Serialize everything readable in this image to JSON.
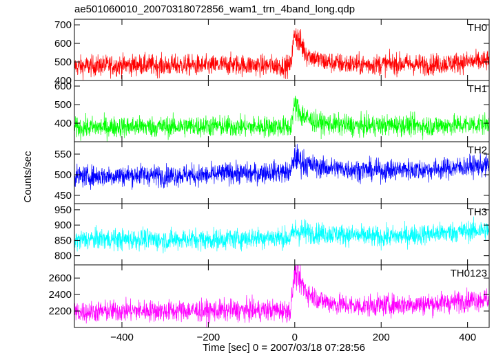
{
  "chart_data": {
    "type": "line",
    "title": "ae501060010_20070318072856_wam1_trn_4band_long.qdp",
    "xlabel": "Time [sec] 0 = 2007/03/18 07:28:56",
    "ylabel": "Counts/sec",
    "xlim": [
      -510,
      450
    ],
    "xticks": [
      -400,
      -200,
      0,
      200,
      400
    ],
    "panels": [
      {
        "name": "TH0",
        "color": "#ff0000",
        "ylim": [
          400,
          730
        ],
        "yticks": [
          400,
          500,
          600,
          700
        ],
        "points": [
          [
            -510,
            475
          ],
          [
            -450,
            480
          ],
          [
            -400,
            482
          ],
          [
            -350,
            485
          ],
          [
            -300,
            480
          ],
          [
            -250,
            483
          ],
          [
            -200,
            478
          ],
          [
            -150,
            486
          ],
          [
            -100,
            482
          ],
          [
            -50,
            480
          ],
          [
            -10,
            478
          ],
          [
            0,
            660
          ],
          [
            10,
            610
          ],
          [
            30,
            540
          ],
          [
            60,
            505
          ],
          [
            100,
            492
          ],
          [
            150,
            485
          ],
          [
            200,
            488
          ],
          [
            250,
            490
          ],
          [
            300,
            485
          ],
          [
            350,
            492
          ],
          [
            400,
            500
          ],
          [
            445,
            505
          ]
        ]
      },
      {
        "name": "TH1",
        "color": "#00ff00",
        "ylim": [
          300,
          630
        ],
        "yticks": [
          400,
          500,
          600
        ],
        "points": [
          [
            -510,
            375
          ],
          [
            -450,
            378
          ],
          [
            -400,
            380
          ],
          [
            -350,
            382
          ],
          [
            -300,
            380
          ],
          [
            -250,
            383
          ],
          [
            -200,
            385
          ],
          [
            -150,
            382
          ],
          [
            -100,
            380
          ],
          [
            -50,
            383
          ],
          [
            -10,
            378
          ],
          [
            0,
            500
          ],
          [
            10,
            460
          ],
          [
            30,
            420
          ],
          [
            60,
            400
          ],
          [
            100,
            390
          ],
          [
            150,
            385
          ],
          [
            200,
            388
          ],
          [
            250,
            390
          ],
          [
            300,
            385
          ],
          [
            350,
            388
          ],
          [
            400,
            392
          ],
          [
            445,
            395
          ]
        ]
      },
      {
        "name": "TH2",
        "color": "#0000ff",
        "ylim": [
          430,
          580
        ],
        "yticks": [
          450,
          500,
          550
        ],
        "points": [
          [
            -510,
            495
          ],
          [
            -450,
            497
          ],
          [
            -400,
            498
          ],
          [
            -350,
            500
          ],
          [
            -300,
            497
          ],
          [
            -250,
            500
          ],
          [
            -200,
            498
          ],
          [
            -150,
            505
          ],
          [
            -100,
            502
          ],
          [
            -50,
            508
          ],
          [
            -10,
            505
          ],
          [
            0,
            545
          ],
          [
            10,
            535
          ],
          [
            30,
            525
          ],
          [
            60,
            518
          ],
          [
            100,
            515
          ],
          [
            150,
            512
          ],
          [
            200,
            510
          ],
          [
            250,
            513
          ],
          [
            300,
            512
          ],
          [
            350,
            515
          ],
          [
            400,
            520
          ],
          [
            445,
            522
          ]
        ]
      },
      {
        "name": "TH3",
        "color": "#00ffff",
        "ylim": [
          770,
          970
        ],
        "yticks": [
          800,
          850,
          900,
          950
        ],
        "points": [
          [
            -510,
            850
          ],
          [
            -450,
            855
          ],
          [
            -400,
            852
          ],
          [
            -350,
            855
          ],
          [
            -300,
            850
          ],
          [
            -250,
            855
          ],
          [
            -200,
            852
          ],
          [
            -150,
            855
          ],
          [
            -100,
            858
          ],
          [
            -50,
            860
          ],
          [
            -10,
            858
          ],
          [
            0,
            880
          ],
          [
            30,
            875
          ],
          [
            100,
            870
          ],
          [
            150,
            865
          ],
          [
            200,
            860
          ],
          [
            250,
            865
          ],
          [
            300,
            870
          ],
          [
            350,
            875
          ],
          [
            400,
            880
          ],
          [
            445,
            885
          ]
        ]
      },
      {
        "name": "TH0123",
        "color": "#ff00ff",
        "ylim": [
          2000,
          2760
        ],
        "yticks": [
          2200,
          2400,
          2600
        ],
        "points": [
          [
            -510,
            2185
          ],
          [
            -450,
            2195
          ],
          [
            -400,
            2200
          ],
          [
            -350,
            2205
          ],
          [
            -300,
            2198
          ],
          [
            -250,
            2205
          ],
          [
            -200,
            2200
          ],
          [
            -150,
            2210
          ],
          [
            -100,
            2205
          ],
          [
            -50,
            2210
          ],
          [
            -10,
            2205
          ],
          [
            0,
            2680
          ],
          [
            10,
            2580
          ],
          [
            30,
            2420
          ],
          [
            60,
            2330
          ],
          [
            100,
            2280
          ],
          [
            150,
            2260
          ],
          [
            200,
            2270
          ],
          [
            250,
            2280
          ],
          [
            300,
            2285
          ],
          [
            350,
            2300
          ],
          [
            400,
            2330
          ],
          [
            445,
            2345
          ]
        ]
      }
    ]
  }
}
